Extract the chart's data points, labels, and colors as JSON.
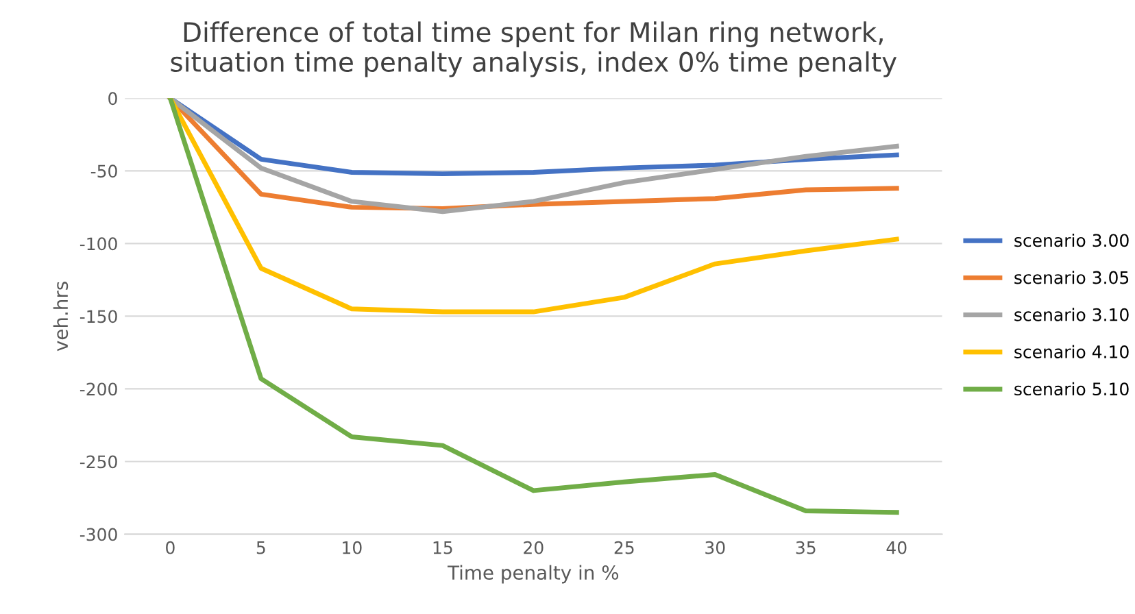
{
  "chart_data": {
    "type": "line",
    "title": "Difference of total time spent for Milan ring network,\nsituation time penalty analysis, index 0% time penalty",
    "xlabel": "Time penalty in %",
    "ylabel": "veh.hrs",
    "categories": [
      "0",
      "5",
      "10",
      "15",
      "20",
      "25",
      "30",
      "35",
      "40"
    ],
    "series": [
      {
        "name": "scenario 3.00",
        "color": "#4472c4",
        "values": [
          0,
          -42,
          -51,
          -52,
          -51,
          -48,
          -46,
          -42,
          -39
        ]
      },
      {
        "name": "scenario 3.05",
        "color": "#ed7d31",
        "values": [
          0,
          -66,
          -75,
          -76,
          -73,
          -71,
          -69,
          -63,
          -62
        ]
      },
      {
        "name": "scenario 3.10",
        "color": "#a5a5a5",
        "values": [
          0,
          -48,
          -71,
          -78,
          -71,
          -58,
          -49,
          -40,
          -33
        ]
      },
      {
        "name": "scenario 4.10",
        "color": "#ffc000",
        "values": [
          0,
          -117,
          -145,
          -147,
          -147,
          -137,
          -114,
          -105,
          -97
        ]
      },
      {
        "name": "scenario 5.10",
        "color": "#70ad47",
        "values": [
          0,
          -193,
          -233,
          -239,
          -270,
          -264,
          -259,
          -284,
          -285
        ]
      }
    ],
    "ylim": [
      -300,
      0
    ],
    "yticks": [
      -300,
      -250,
      -200,
      -150,
      -100,
      -50,
      0
    ],
    "grid": "y",
    "legend": "right",
    "marker": "none",
    "line_style": "solid"
  }
}
